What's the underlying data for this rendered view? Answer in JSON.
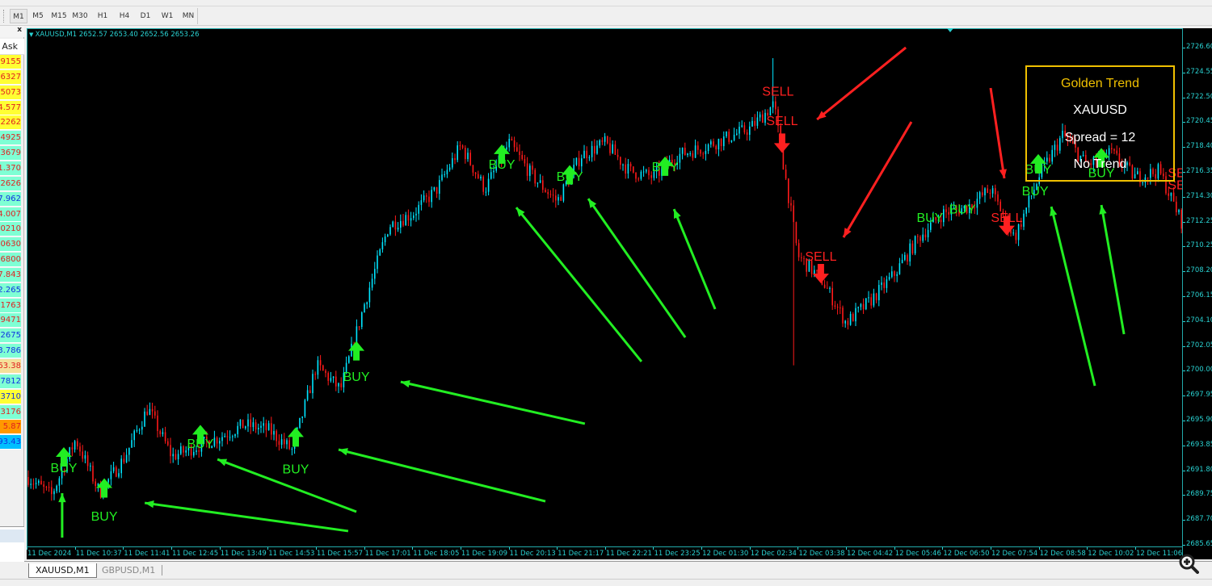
{
  "toolbar": {
    "timeframes": [
      "M1",
      "M5",
      "M15",
      "M30",
      "H1",
      "H4",
      "D1",
      "W1",
      "MN"
    ],
    "active_timeframe": "M1"
  },
  "market_watch": {
    "close_label": "x",
    "column_header": "Ask",
    "rows": [
      {
        "ask": "9155",
        "bg": "#ffff33",
        "color": "#e02020"
      },
      {
        "ask": "6327",
        "bg": "#ffff33",
        "color": "#e02020"
      },
      {
        "ask": "5073",
        "bg": "#ffff33",
        "color": "#e02020"
      },
      {
        "ask": "4.577",
        "bg": "#ffff33",
        "color": "#e02020"
      },
      {
        "ask": "2262",
        "bg": "#ffff33",
        "color": "#e02020"
      },
      {
        "ask": "4925",
        "bg": "#7fffd4",
        "color": "#e02020"
      },
      {
        "ask": "3679",
        "bg": "#7fffd4",
        "color": "#e02020"
      },
      {
        "ask": "1.370",
        "bg": "#7fffd4",
        "color": "#e02020"
      },
      {
        "ask": "2626",
        "bg": "#7fffd4",
        "color": "#e02020"
      },
      {
        "ask": "7.962",
        "bg": "#7fffd4",
        "color": "#1030e0"
      },
      {
        "ask": "4.007",
        "bg": "#7fffd4",
        "color": "#e02020"
      },
      {
        "ask": "0210",
        "bg": "#7fffd4",
        "color": "#e02020"
      },
      {
        "ask": "0630",
        "bg": "#7fffd4",
        "color": "#e02020"
      },
      {
        "ask": "6800",
        "bg": "#7fffd4",
        "color": "#e02020"
      },
      {
        "ask": "7.843",
        "bg": "#7fffd4",
        "color": "#e02020"
      },
      {
        "ask": "2.265",
        "bg": "#7fffd4",
        "color": "#1030e0"
      },
      {
        "ask": "1763",
        "bg": "#7fffd4",
        "color": "#e02020"
      },
      {
        "ask": "9471",
        "bg": "#7fffd4",
        "color": "#e02020"
      },
      {
        "ask": "2675",
        "bg": "#7fffd4",
        "color": "#1030e0"
      },
      {
        "ask": "3.786",
        "bg": "#7fffd4",
        "color": "#1030e0"
      },
      {
        "ask": "63.38",
        "bg": "#f5e09a",
        "color": "#e02020"
      },
      {
        "ask": "7812",
        "bg": "#7fffd4",
        "color": "#1030e0"
      },
      {
        "ask": "3710",
        "bg": "#ffff33",
        "color": "#1030e0"
      },
      {
        "ask": "3176",
        "bg": "#7fffd4",
        "color": "#e02020"
      },
      {
        "ask": "5.87",
        "bg": "#ff9900",
        "color": "#e02020"
      },
      {
        "ask": "93.43",
        "bg": "#00bfff",
        "color": "#1030e0"
      }
    ]
  },
  "chart": {
    "title": "XAUUSD,M1  2652.57 2653.40 2652.56 2653.26",
    "colors": {
      "background": "#000000",
      "bull": "#00e5ff",
      "bear": "#ff1a1a",
      "axis": "#29d0d0",
      "buy": "#22ee22",
      "sell": "#ff2020",
      "info_border": "#f0c000"
    },
    "info_box": {
      "title": "Golden Trend",
      "symbol": "XAUUSD",
      "spread": "Spread = 12",
      "trend": "No Trend"
    },
    "tabs": [
      {
        "label": "XAUUSD,M1",
        "active": true
      },
      {
        "label": "GBPUSD,M1",
        "active": false
      }
    ]
  },
  "chart_data": {
    "type": "candlestick",
    "symbol": "XAUUSD",
    "timeframe": "M1",
    "ylim": [
      2685.65,
      2726.6
    ],
    "y_ticks": [
      "2726.60",
      "2724.55",
      "2722.50",
      "2720.45",
      "2718.40",
      "2716.35",
      "2714.30",
      "2712.25",
      "2710.25",
      "2708.20",
      "2706.15",
      "2704.10",
      "2702.05",
      "2700.00",
      "2697.95",
      "2695.90",
      "2693.85",
      "2691.80",
      "2689.75",
      "2687.70",
      "2685.65"
    ],
    "x_ticks": [
      "11 Dec 2024",
      "11 Dec 10:37",
      "11 Dec 11:41",
      "11 Dec 12:45",
      "11 Dec 13:49",
      "11 Dec 14:53",
      "11 Dec 15:57",
      "11 Dec 17:01",
      "11 Dec 18:05",
      "11 Dec 19:09",
      "11 Dec 20:13",
      "11 Dec 21:17",
      "11 Dec 22:21",
      "11 Dec 23:25",
      "12 Dec 01:30",
      "12 Dec 02:34",
      "12 Dec 03:38",
      "12 Dec 04:42",
      "12 Dec 05:46",
      "12 Dec 06:50",
      "12 Dec 07:54",
      "12 Dec 08:58",
      "12 Dec 10:02",
      "12 Dec 11:06"
    ],
    "price_path": [
      2691.3,
      2689.8,
      2694.4,
      2690.0,
      2692.8,
      2697.0,
      2693.0,
      2693.8,
      2694.6,
      2695.6,
      2695.2,
      2693.5,
      2700.5,
      2698.5,
      2705.6,
      2712.0,
      2713.0,
      2715.0,
      2718.6,
      2715.0,
      2718.8,
      2716.0,
      2714.0,
      2717.8,
      2718.8,
      2716.5,
      2716.0,
      2717.8,
      2718.4,
      2719.2,
      2720.0,
      2722.0,
      2709.5,
      2707.5,
      2704.0,
      2705.8,
      2708.0,
      2711.0,
      2713.0,
      2713.5,
      2715.0,
      2711.0,
      2716.0,
      2719.5,
      2717.0,
      2718.0,
      2716.0,
      2716.5,
      2712.0
    ],
    "wicks": [
      {
        "at": 31.0,
        "high": 2725.8
      },
      {
        "at": 31.8,
        "low": 2700.5
      }
    ],
    "signals": [
      {
        "label": "BUY",
        "type": "buy",
        "at": 1.51,
        "price": 2692.1,
        "arrow": 2692.96
      },
      {
        "label": "BUY",
        "type": "buy",
        "at": 3.19,
        "price": 2688.1,
        "arrow": 2690.4
      },
      {
        "label": "BUY",
        "type": "buy",
        "at": 7.18,
        "price": 2694.1,
        "arrow": 2694.8
      },
      {
        "label": "BUY",
        "type": "buy",
        "at": 11.14,
        "price": 2692.0,
        "arrow": 2694.6
      },
      {
        "label": "BUY",
        "type": "buy",
        "at": 13.66,
        "price": 2699.6,
        "arrow": 2701.7
      },
      {
        "label": "BUY",
        "type": "buy",
        "at": 19.7,
        "price": 2717.1,
        "arrow": 2717.9
      },
      {
        "label": "BUY",
        "type": "buy",
        "at": 22.52,
        "price": 2716.1,
        "arrow": 2716.2
      },
      {
        "label": "BUY",
        "type": "buy",
        "at": 26.48,
        "price": 2716.9,
        "arrow": 2716.9
      },
      {
        "label": "SELL",
        "type": "sell",
        "at": 31.17,
        "price": 2723.1,
        "arrow": null
      },
      {
        "label": "SELL",
        "type": "sell",
        "at": 31.34,
        "price": 2720.7,
        "arrow": 2718.8
      },
      {
        "label": "SELL",
        "type": "sell",
        "at": 32.95,
        "price": 2709.5,
        "arrow": 2708.05
      },
      {
        "label": "BUY",
        "type": "buy",
        "at": 37.48,
        "price": 2712.7,
        "arrow": null
      },
      {
        "label": "BUY",
        "type": "buy",
        "at": 38.83,
        "price": 2713.4,
        "arrow": null
      },
      {
        "label": "SELL",
        "type": "sell",
        "at": 40.67,
        "price": 2712.7,
        "arrow": 2712.0
      },
      {
        "label": "BUY",
        "type": "buy",
        "at": 41.98,
        "price": 2716.7,
        "arrow": 2717.1
      },
      {
        "label": "BUY",
        "type": "buy",
        "at": 41.85,
        "price": 2714.9,
        "arrow": null
      },
      {
        "label": "BUY",
        "type": "buy",
        "at": 44.6,
        "price": 2716.4,
        "arrow": 2717.6
      },
      {
        "label": "SE",
        "type": "sell",
        "at": 47.72,
        "price": 2716.4,
        "arrow": null
      },
      {
        "label": "SE",
        "type": "sell",
        "at": 47.72,
        "price": 2715.4,
        "arrow": null
      }
    ],
    "trend_arrows": [
      {
        "color": "buy",
        "from": [
          1.44,
          2686.31
        ],
        "to": [
          1.44,
          2689.97
        ]
      },
      {
        "color": "buy",
        "from": [
          13.32,
          2686.85
        ],
        "to": [
          4.87,
          2689.17
        ]
      },
      {
        "color": "buy",
        "from": [
          13.66,
          2688.44
        ],
        "to": [
          7.89,
          2692.76
        ]
      },
      {
        "color": "buy",
        "from": [
          21.51,
          2689.3
        ],
        "to": [
          12.92,
          2693.56
        ]
      },
      {
        "color": "buy",
        "from": [
          23.15,
          2695.69
        ],
        "to": [
          15.5,
          2699.14
        ]
      },
      {
        "color": "buy",
        "from": [
          25.5,
          2700.81
        ],
        "to": [
          20.3,
          2713.5
        ]
      },
      {
        "color": "buy",
        "from": [
          27.32,
          2702.8
        ],
        "to": [
          23.29,
          2714.23
        ]
      },
      {
        "color": "buy",
        "from": [
          28.56,
          2705.13
        ],
        "to": [
          26.85,
          2713.37
        ]
      },
      {
        "color": "buy",
        "from": [
          44.33,
          2698.81
        ],
        "to": [
          42.52,
          2713.57
        ]
      },
      {
        "color": "buy",
        "from": [
          45.54,
          2703.07
        ],
        "to": [
          44.6,
          2713.7
        ]
      },
      {
        "color": "sell",
        "from": [
          36.48,
          2726.67
        ],
        "to": [
          32.79,
          2720.75
        ]
      },
      {
        "color": "sell",
        "from": [
          36.71,
          2720.55
        ],
        "to": [
          33.89,
          2711.04
        ]
      },
      {
        "color": "sell",
        "from": [
          40.0,
          2723.34
        ],
        "to": [
          40.57,
          2715.9
        ]
      }
    ]
  }
}
